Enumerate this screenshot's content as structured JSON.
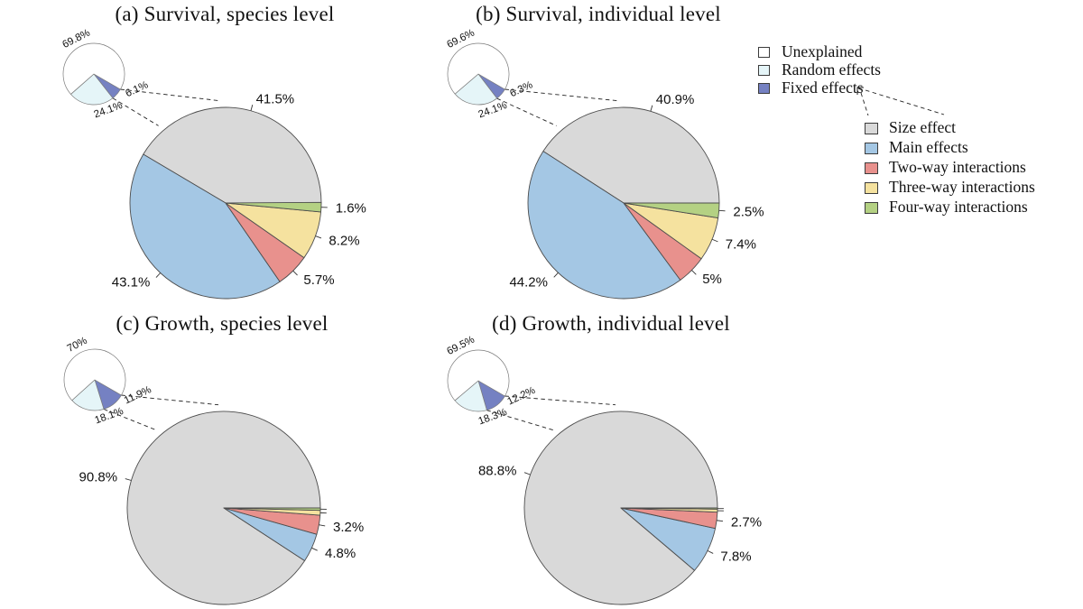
{
  "legend_small": {
    "items": [
      {
        "label": "Unexplained",
        "color": "#ffffff"
      },
      {
        "label": "Random effects",
        "color": "#e5f5f8"
      },
      {
        "label": "Fixed effects",
        "color": "#7581c2"
      }
    ]
  },
  "legend_main": {
    "items": [
      {
        "label": "Size effect",
        "color": "#d9d9d9"
      },
      {
        "label": "Main effects",
        "color": "#a4c7e4"
      },
      {
        "label": "Two-way interactions",
        "color": "#e8918d"
      },
      {
        "label": "Three-way interactions",
        "color": "#f5e29f"
      },
      {
        "label": "Four-way interactions",
        "color": "#b4d183"
      }
    ]
  },
  "chart_data": [
    {
      "type": "pie",
      "panel": "a",
      "title": "(a) Survival, species level",
      "main": {
        "categories": [
          "Size effect",
          "Main effects",
          "Two-way interactions",
          "Three-way interactions",
          "Four-way interactions"
        ],
        "values": [
          41.5,
          43.1,
          5.7,
          8.2,
          1.6
        ],
        "labels": [
          "41.5%",
          "43.1%",
          "5.7%",
          "8.2%",
          "1.6%"
        ]
      },
      "inset": {
        "categories": [
          "Unexplained",
          "Random effects",
          "Fixed effects"
        ],
        "values": [
          69.8,
          24.1,
          6.1
        ],
        "labels": [
          "69.8%",
          "24.1%",
          "6.1%"
        ]
      }
    },
    {
      "type": "pie",
      "panel": "b",
      "title": "(b) Survival, individual level",
      "main": {
        "categories": [
          "Size effect",
          "Main effects",
          "Two-way interactions",
          "Three-way interactions",
          "Four-way interactions"
        ],
        "values": [
          40.9,
          44.2,
          5,
          7.4,
          2.5
        ],
        "labels": [
          "40.9%",
          "44.2%",
          "5%",
          "7.4%",
          "2.5%"
        ]
      },
      "inset": {
        "categories": [
          "Unexplained",
          "Random effects",
          "Fixed effects"
        ],
        "values": [
          69.6,
          24.1,
          6.3
        ],
        "labels": [
          "69.6%",
          "24.1%",
          "6.3%"
        ]
      }
    },
    {
      "type": "pie",
      "panel": "c",
      "title": "(c) Growth, species level",
      "main": {
        "categories": [
          "Size effect",
          "Main effects",
          "Two-way interactions",
          "Three-way interactions",
          "Four-way interactions"
        ],
        "values": [
          90.8,
          4.8,
          3.2,
          0.8,
          0.4
        ],
        "labels": [
          "90.8%",
          "4.8%",
          "3.2%",
          "",
          ""
        ]
      },
      "inset": {
        "categories": [
          "Unexplained",
          "Random effects",
          "Fixed effects"
        ],
        "values": [
          70,
          18.1,
          11.9
        ],
        "labels": [
          "70%",
          "18.1%",
          "11.9%"
        ]
      }
    },
    {
      "type": "pie",
      "panel": "d",
      "title": "(d) Growth, individual level",
      "main": {
        "categories": [
          "Size effect",
          "Main effects",
          "Two-way interactions",
          "Three-way interactions",
          "Four-way interactions"
        ],
        "values": [
          88.8,
          7.8,
          2.7,
          0.5,
          0.2
        ],
        "labels": [
          "88.8%",
          "7.8%",
          "2.7%",
          "",
          ""
        ]
      },
      "inset": {
        "categories": [
          "Unexplained",
          "Random effects",
          "Fixed effects"
        ],
        "values": [
          69.5,
          18.3,
          12.2
        ],
        "labels": [
          "69.5%",
          "18.3%",
          "12.2%"
        ]
      }
    }
  ]
}
